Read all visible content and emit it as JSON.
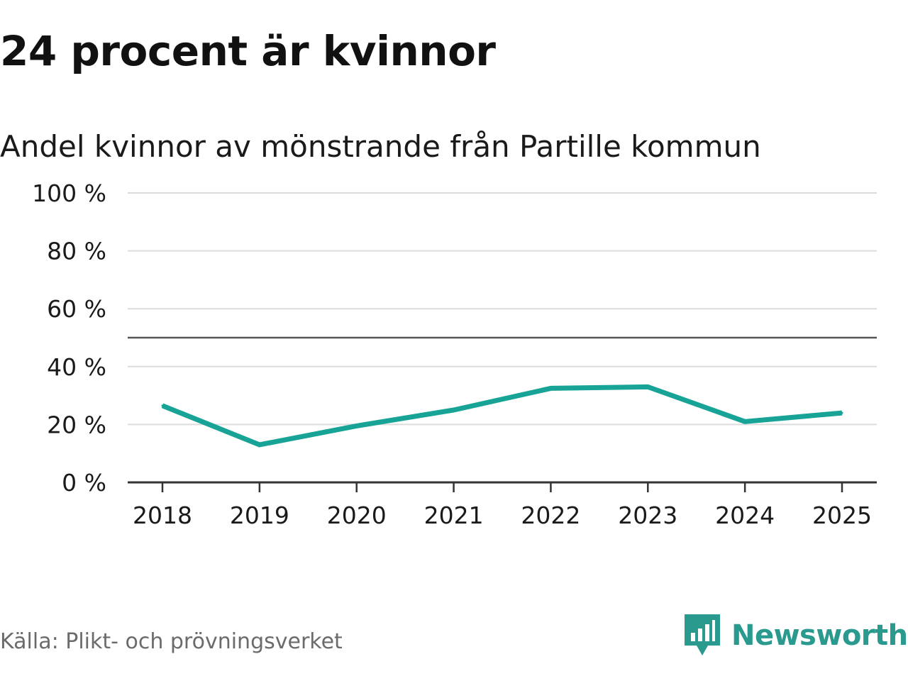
{
  "headline": "24 procent är kvinnor",
  "source": "Källa: Plikt- och prövningsverket",
  "brand": {
    "name": "Newsworthy",
    "icon": "newsworthy-logo-icon",
    "color": "#2a9a8e"
  },
  "colors": {
    "series": "#17a497",
    "grid": "#dcdcdc",
    "reference_line": "#555555",
    "axis": "#333333",
    "text": "#1a1a1a",
    "muted_text": "#6b6b6b"
  },
  "chart_data": {
    "type": "line",
    "title": "Andel kvinnor av mönstrande från Partille kommun",
    "xlabel": "",
    "ylabel": "",
    "categories": [
      "2018",
      "2019",
      "2020",
      "2021",
      "2022",
      "2023",
      "2024",
      "2025"
    ],
    "series": [
      {
        "name": "Andel kvinnor",
        "values": [
          26.5,
          13,
          19.5,
          25,
          32.5,
          33,
          21,
          24
        ]
      }
    ],
    "ylim": [
      0,
      100
    ],
    "yticks": [
      0,
      20,
      40,
      60,
      80,
      100
    ],
    "ytick_labels": [
      "0 %",
      "20 %",
      "40 %",
      "60 %",
      "80 %",
      "100 %"
    ],
    "reference_line": 50,
    "grid": true,
    "legend": "none"
  }
}
